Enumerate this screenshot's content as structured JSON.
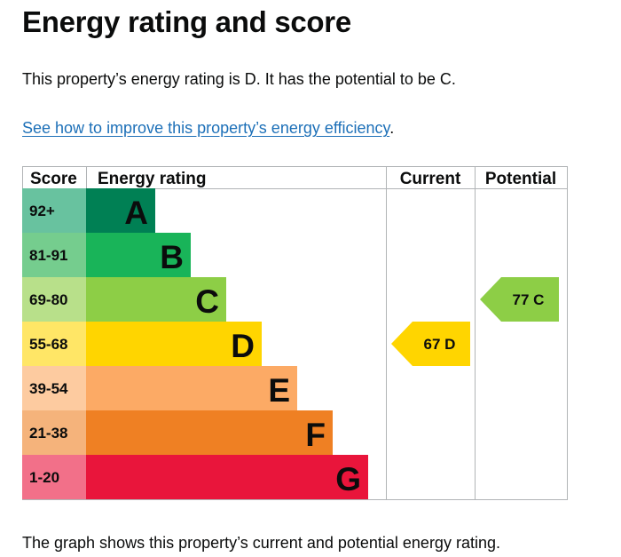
{
  "page": {
    "title": "Energy rating and score",
    "summary": "This property’s energy rating is D. It has the potential to be C.",
    "link_text": "See how to improve this property’s energy efficiency",
    "link_suffix": ".",
    "caption": "The graph shows this property’s current and potential energy rating."
  },
  "chart_data": {
    "type": "bar",
    "headers": {
      "score": "Score",
      "energy_rating": "Energy rating",
      "current": "Current",
      "potential": "Potential"
    },
    "bands": [
      {
        "score": "92+",
        "letter": "A",
        "color": "#008054",
        "score_bg": "#68c29f"
      },
      {
        "score": "81-91",
        "letter": "B",
        "color": "#19b459",
        "score_bg": "#75cd8e"
      },
      {
        "score": "69-80",
        "letter": "C",
        "color": "#8dce46",
        "score_bg": "#b8e08a"
      },
      {
        "score": "55-68",
        "letter": "D",
        "color": "#ffd500",
        "score_bg": "#ffe666"
      },
      {
        "score": "39-54",
        "letter": "E",
        "color": "#fcaa65",
        "score_bg": "#fdcba0"
      },
      {
        "score": "21-38",
        "letter": "F",
        "color": "#ef8023",
        "score_bg": "#f5b37b"
      },
      {
        "score": "1-20",
        "letter": "G",
        "color": "#e9153b",
        "score_bg": "#f27089"
      }
    ],
    "current": {
      "score": 67,
      "letter": "D",
      "label": "67  D"
    },
    "potential": {
      "score": 77,
      "letter": "C",
      "label": "77  C"
    }
  }
}
